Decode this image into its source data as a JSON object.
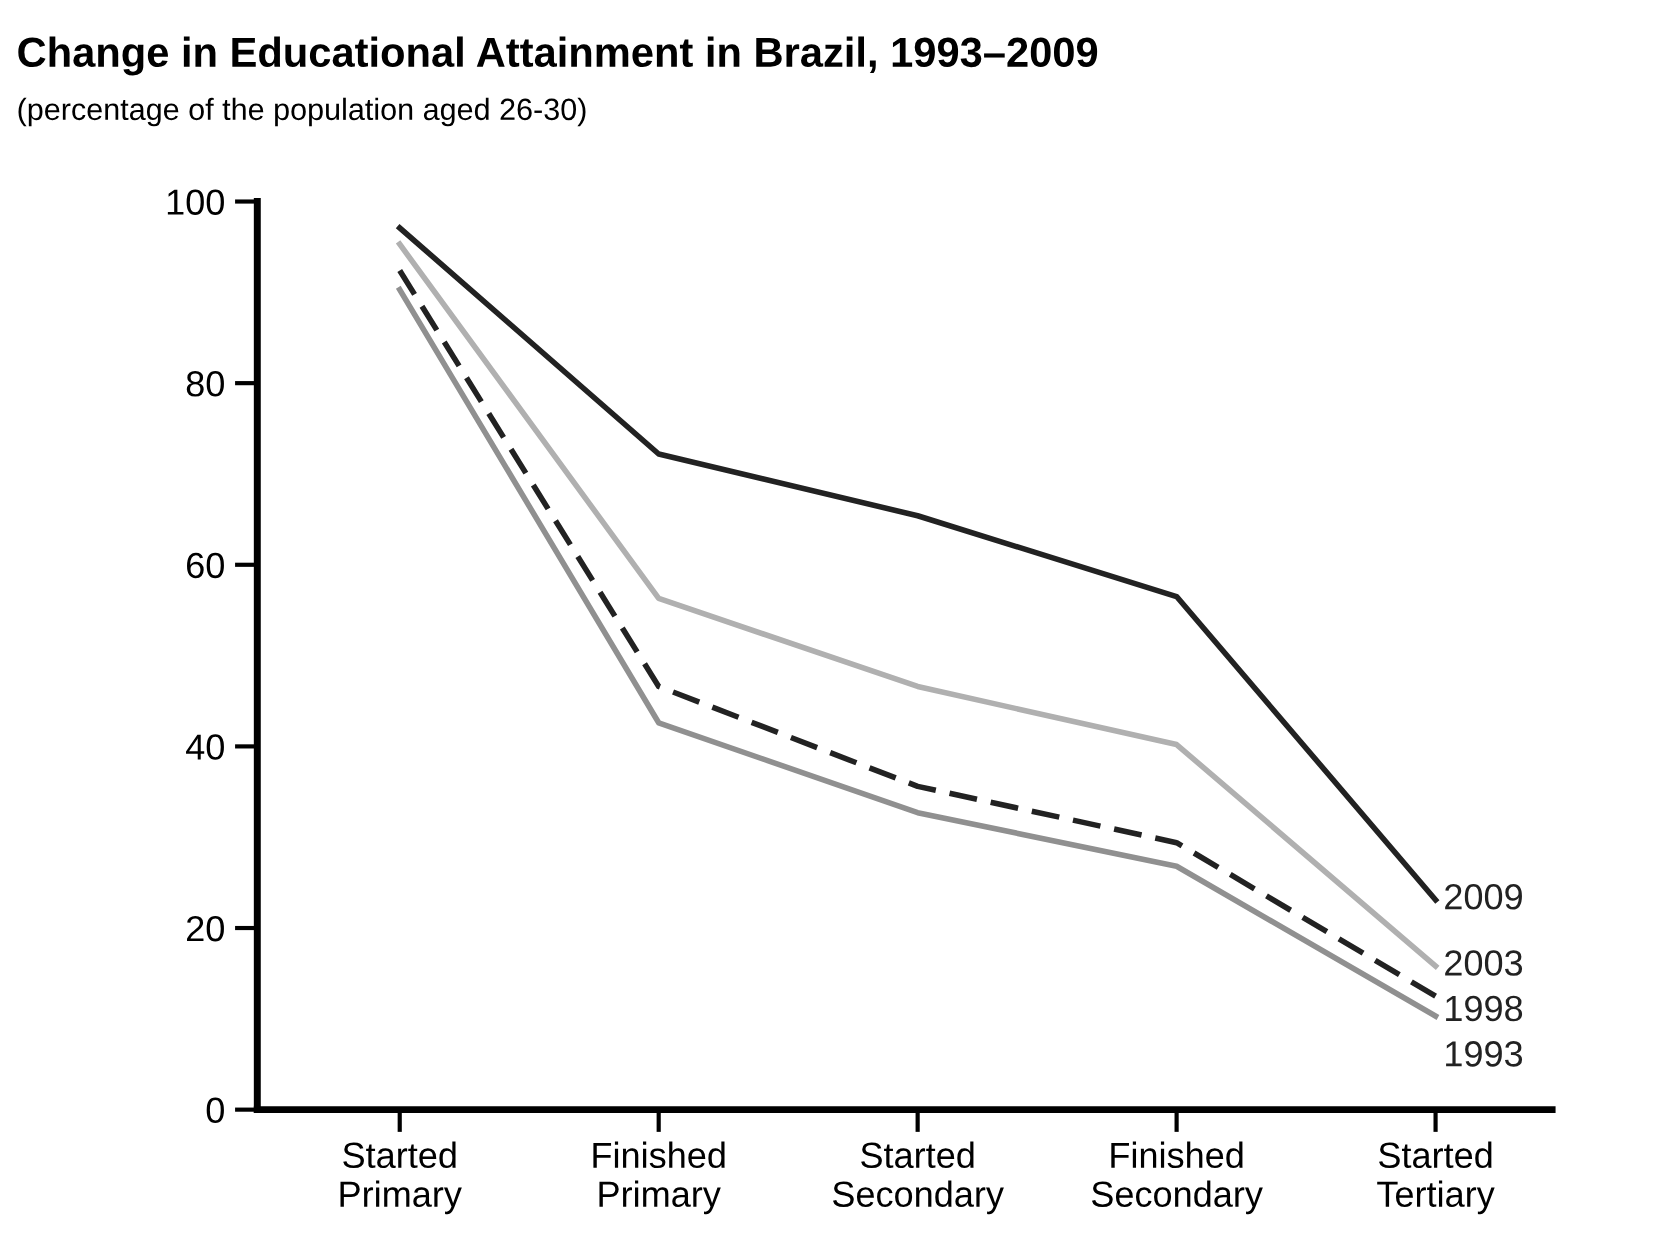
{
  "chart_data": {
    "type": "line",
    "title": "Change in Educational Attainment in Brazil, 1993–2009",
    "subtitle": "(percentage of the population aged 26-30)",
    "categories": [
      "Started\nPrimary",
      "Finished\nPrimary",
      "Started\nSecondary",
      "Finished\nSecondary",
      "Started\nTertiary"
    ],
    "series": [
      {
        "name": "2009",
        "color": "#222222",
        "line_style": "solid",
        "values": [
          97.1,
          72.2,
          65.4,
          56.5,
          23.1
        ]
      },
      {
        "name": "2003",
        "color": "#b0b0b0",
        "line_style": "solid",
        "values": [
          95.3,
          56.3,
          46.6,
          40.2,
          15.8
        ]
      },
      {
        "name": "1998",
        "color": "#222222",
        "line_style": "dashed",
        "values": [
          92.4,
          46.6,
          35.6,
          29.4,
          12.5
        ]
      },
      {
        "name": "1993",
        "color": "#909090",
        "line_style": "solid",
        "values": [
          90.3,
          42.6,
          32.7,
          26.8,
          10.3
        ]
      }
    ],
    "ylim": [
      0,
      100
    ],
    "yticks": [
      0,
      20,
      40,
      60,
      80,
      100
    ],
    "grid": false,
    "legend": false,
    "marker": "none"
  }
}
